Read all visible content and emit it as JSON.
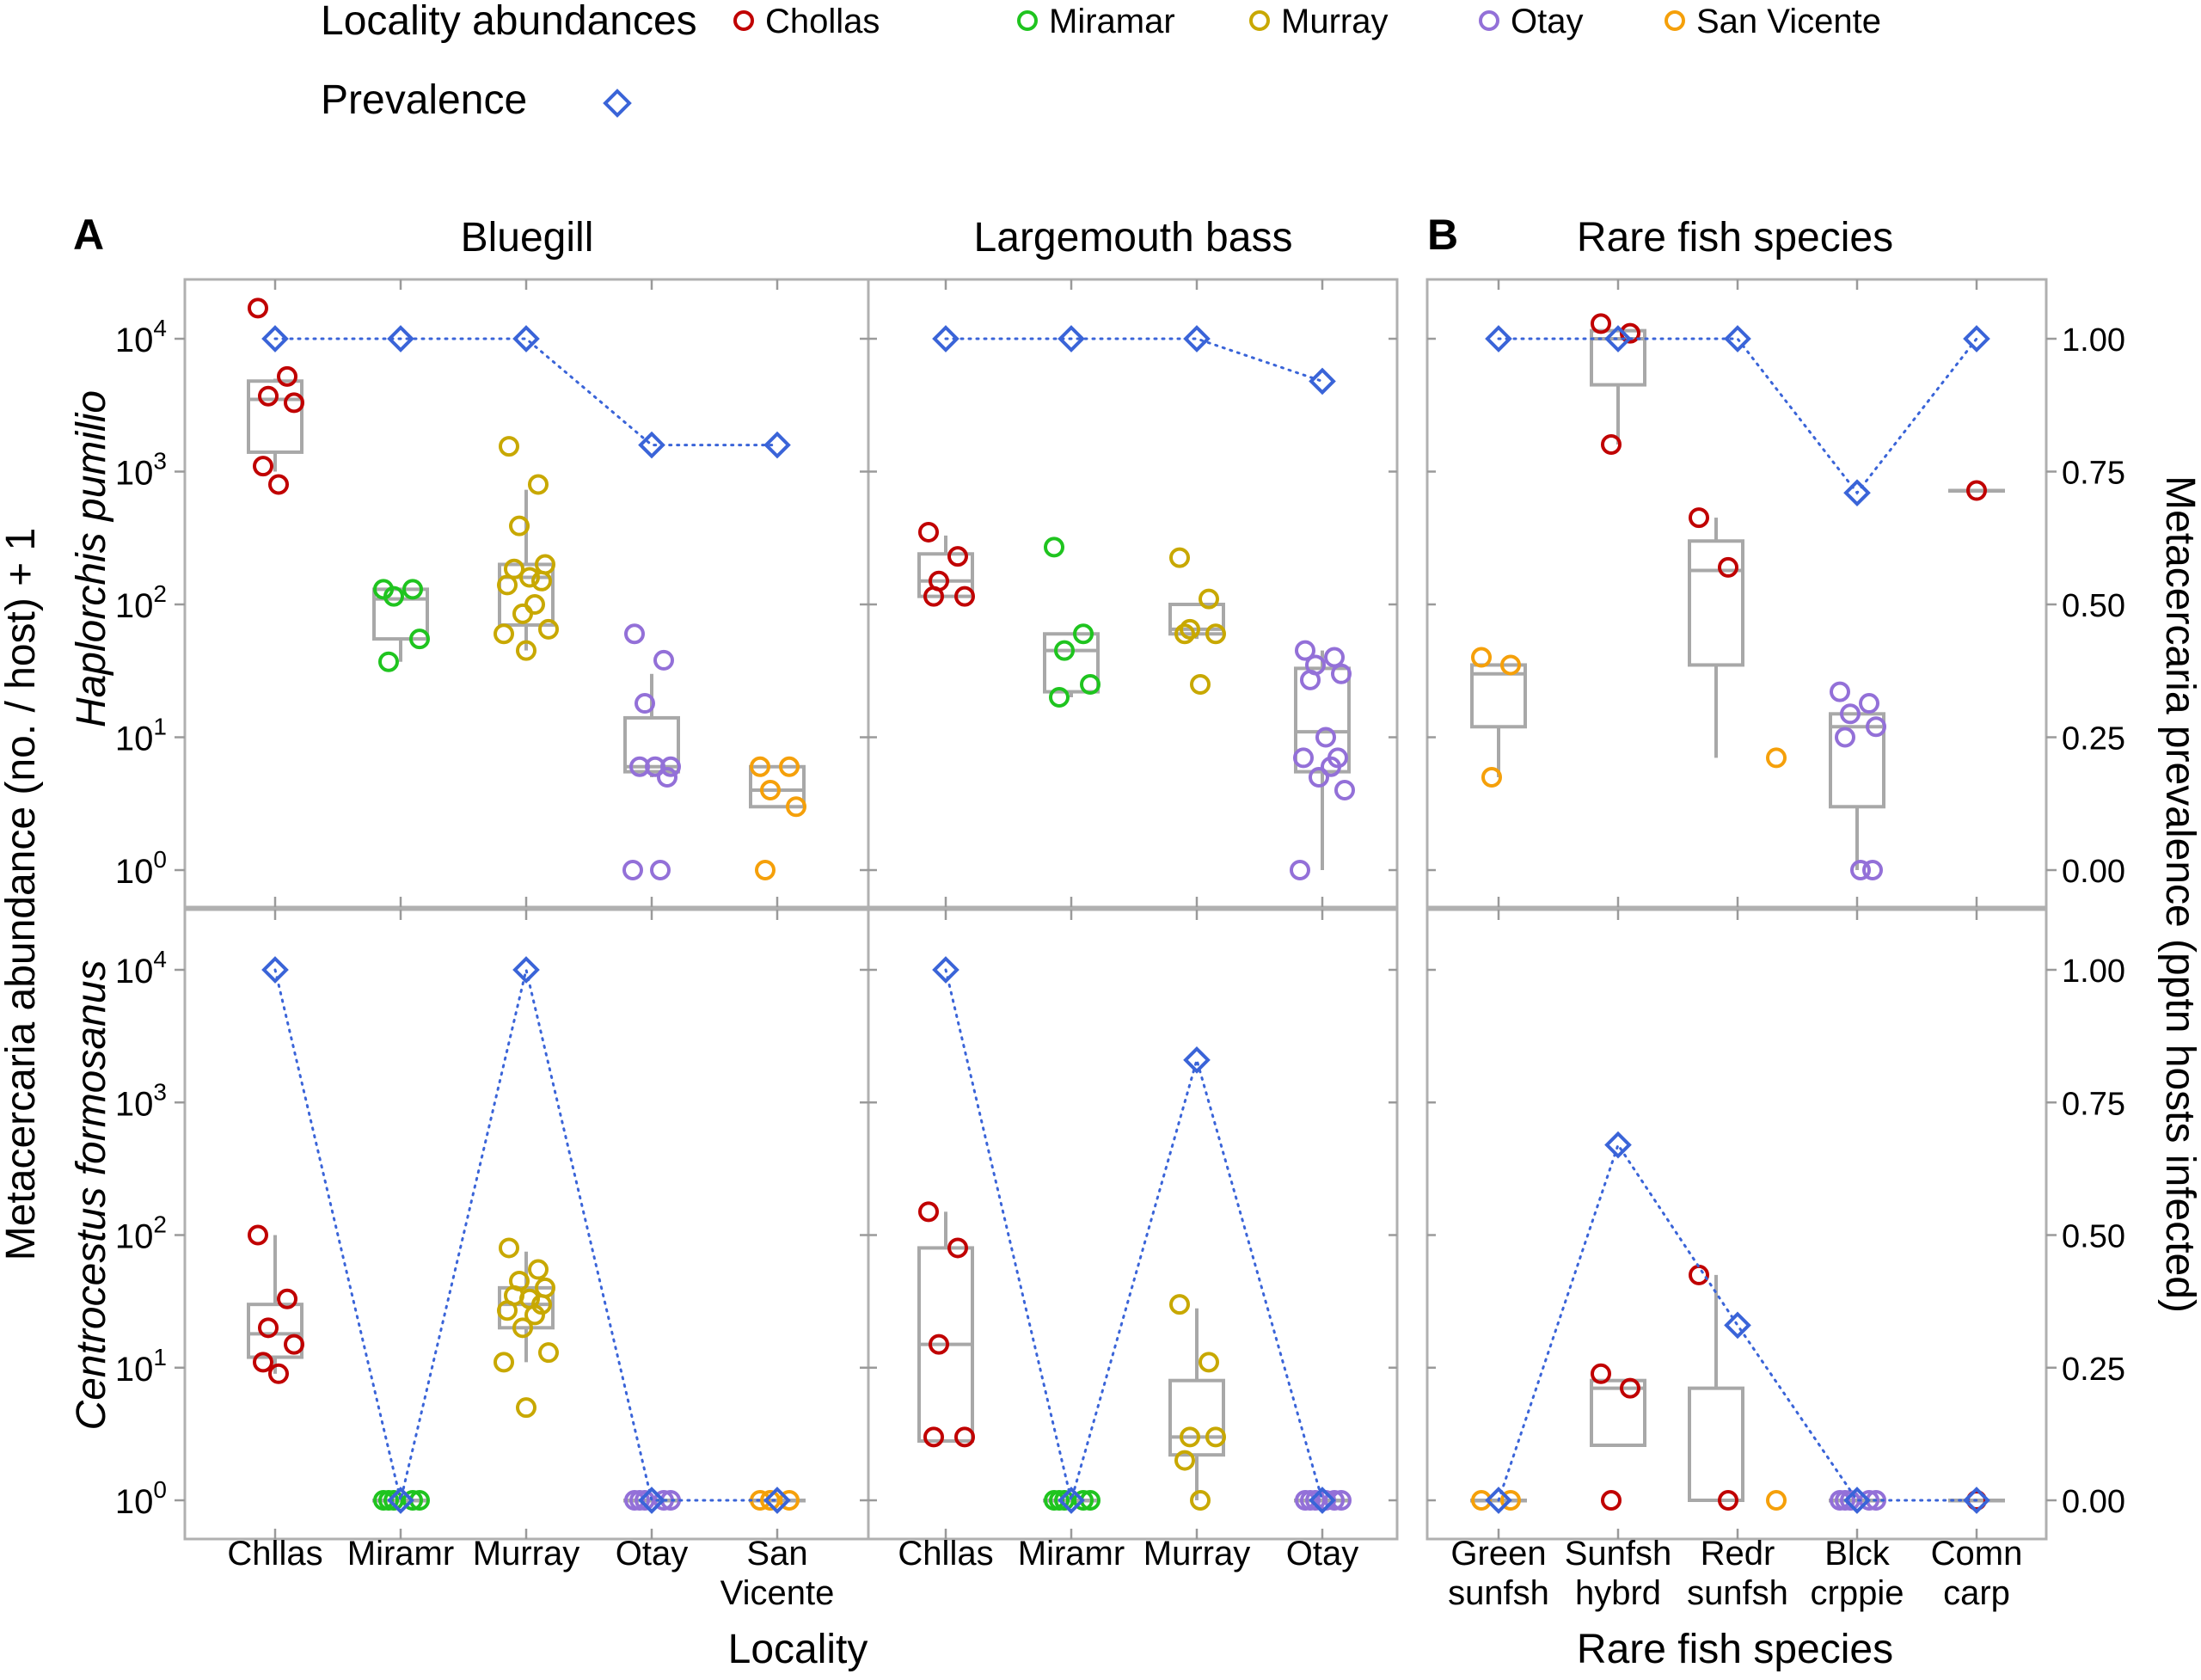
{
  "figure": {
    "panel_letters": [
      "A",
      "B"
    ],
    "y_axis_left_label": "Metacercaria abundance (no. / host) + 1",
    "y_axis_right_label": "Metacercaria prevalence (pptn hosts infected)",
    "x_axis_label_A": "Locality",
    "x_axis_label_B": "Rare fish species"
  },
  "legend": {
    "abundance_title": "Locality abundances",
    "prevalence_title": "Prevalence",
    "localities": [
      {
        "name": "Chollas",
        "color": "#c00000"
      },
      {
        "name": "Miramar",
        "color": "#1fc41f"
      },
      {
        "name": "Murray",
        "color": "#c8a800"
      },
      {
        "name": "Otay",
        "color": "#9370d8"
      },
      {
        "name": "San Vicente",
        "color": "#f5a00a"
      }
    ],
    "prevalence_color": "#3a64d8",
    "prevalence_marker": "open-diamond-icon"
  },
  "chart_data": {
    "type": "scatter",
    "y_left_scale": "log10",
    "y_left_ticks": [
      "10^0",
      "10^1",
      "10^2",
      "10^3",
      "10^4"
    ],
    "y_right_ticks": [
      "0.00",
      "0.25",
      "0.50",
      "0.75",
      "1.00"
    ],
    "ylim_left": [
      1,
      10000
    ],
    "ylim_right": [
      0,
      1
    ],
    "column_titles": [
      "Bluegill",
      "Largemouth bass",
      "Rare fish species"
    ],
    "row_labels": [
      "Haplorchis pumilio",
      "Centrocestus formosanus"
    ],
    "columns": [
      {
        "title": "Bluegill",
        "categories": [
          [
            "Chllas"
          ],
          [
            "Miramr"
          ],
          [
            "Murray"
          ],
          [
            "Otay"
          ],
          [
            "San",
            "Vicente"
          ]
        ]
      },
      {
        "title": "Largemouth bass",
        "categories": [
          [
            "Chllas"
          ],
          [
            "Miramr"
          ],
          [
            "Murray"
          ],
          [
            "Otay"
          ]
        ]
      },
      {
        "title": "Rare fish species",
        "categories": [
          [
            "Green",
            "sunfsh"
          ],
          [
            "Sunfsh",
            "hybrd"
          ],
          [
            "Redr",
            "sunfsh"
          ],
          [
            "Blck",
            "crppie"
          ],
          [
            "Comn",
            "carp"
          ]
        ]
      }
    ],
    "panels": [
      {
        "row": 0,
        "col": 0,
        "groups": [
          {
            "color": "Chollas",
            "points": [
              17000,
              5200,
              3700,
              3300,
              1100,
              800
            ],
            "box": [
              1400,
              3500,
              4800,
              1000,
              5000
            ]
          },
          {
            "color": "Miramar",
            "points": [
              130,
              130,
              115,
              55,
              37
            ],
            "box": [
              55,
              110,
              130,
              37,
              130
            ]
          },
          {
            "color": "Murray",
            "points": [
              1550,
              800,
              390,
              200,
              185,
              160,
              150,
              140,
              100,
              85,
              65,
              60,
              45
            ],
            "box": [
              70,
              160,
              200,
              45,
              730
            ]
          },
          {
            "color": "Otay",
            "points": [
              60,
              38,
              18,
              6,
              6,
              6,
              5,
              1,
              1
            ],
            "box": [
              5.5,
              6,
              14,
              5,
              30
            ]
          },
          {
            "color": "San Vicente",
            "points": [
              6,
              6,
              4,
              3,
              1
            ],
            "box": [
              3,
              4,
              6,
              3,
              6
            ]
          }
        ],
        "prevalence": [
          1.0,
          1.0,
          1.0,
          0.8,
          0.8
        ]
      },
      {
        "row": 0,
        "col": 1,
        "groups": [
          {
            "color": "Chollas",
            "points": [
              350,
              230,
              150,
              115,
              115
            ],
            "box": [
              115,
              150,
              240,
              115,
              330
            ]
          },
          {
            "color": "Miramar",
            "points": [
              270,
              60,
              45,
              25,
              20
            ],
            "box": [
              22,
              45,
              60,
              20,
              60
            ]
          },
          {
            "color": "Murray",
            "points": [
              225,
              110,
              65,
              60,
              60,
              25
            ],
            "box": [
              60,
              65,
              100,
              55,
              100
            ]
          },
          {
            "color": "Otay",
            "points": [
              45,
              40,
              35,
              30,
              27,
              10,
              7,
              7,
              6,
              5,
              4,
              1
            ],
            "box": [
              5.5,
              11,
              33,
              1,
              45
            ]
          }
        ],
        "prevalence": [
          1.0,
          1.0,
          1.0,
          0.92
        ]
      },
      {
        "row": 0,
        "col": 2,
        "groups": [
          {
            "color": "San Vicente",
            "points": [
              40,
              35,
              5
            ],
            "box": [
              12,
              30,
              35,
              5,
              35
            ]
          },
          {
            "color": "Chollas",
            "points": [
              13000,
              11000,
              1600
            ],
            "box": [
              4500,
              10000,
              11500,
              1600,
              11500
            ]
          },
          {
            "color": "Chollas",
            "points": [
              450,
              190
            ],
            "box": [
              35,
              180,
              300,
              7,
              450
            ]
          },
          {
            "color": "San Vicente",
            "points": [
              7
            ],
            "box": null
          },
          {
            "color": "Otay",
            "points": [
              22,
              18,
              15,
              12,
              10,
              1,
              1
            ],
            "box": [
              3,
              12,
              15,
              1,
              15
            ]
          },
          {
            "color": "Chollas",
            "points": [
              720
            ],
            "box": [
              720,
              720,
              720,
              720,
              720
            ]
          }
        ],
        "prevalence": [
          1.0,
          1.0,
          1.0,
          0.71,
          1.0
        ]
      },
      {
        "row": 1,
        "col": 0,
        "groups": [
          {
            "color": "Chollas",
            "points": [
              100,
              33,
              20,
              15,
              11,
              9
            ],
            "box": [
              12,
              18,
              30,
              9,
              100
            ]
          },
          {
            "color": "Miramar",
            "points": [
              1,
              1,
              1,
              1,
              1
            ],
            "box": [
              1,
              1,
              1,
              1,
              1
            ]
          },
          {
            "color": "Murray",
            "points": [
              80,
              55,
              45,
              40,
              35,
              33,
              30,
              27,
              25,
              20,
              13,
              11,
              5
            ],
            "box": [
              20,
              30,
              40,
              11,
              75
            ]
          },
          {
            "color": "Otay",
            "points": [
              1,
              1,
              1,
              1,
              1
            ],
            "box": [
              1,
              1,
              1,
              1,
              1
            ]
          },
          {
            "color": "San Vicente",
            "points": [
              1,
              1,
              1
            ],
            "box": [
              1,
              1,
              1,
              1,
              1
            ]
          }
        ],
        "prevalence": [
          1.0,
          0.0,
          1.0,
          0.0,
          0.0
        ]
      },
      {
        "row": 1,
        "col": 1,
        "groups": [
          {
            "color": "Chollas",
            "points": [
              150,
              80,
              15,
              3,
              3
            ],
            "box": [
              2.8,
              15,
              80,
              2.8,
              150
            ]
          },
          {
            "color": "Miramar",
            "points": [
              1,
              1,
              1,
              1,
              1
            ],
            "box": [
              1,
              1,
              1,
              1,
              1
            ]
          },
          {
            "color": "Murray",
            "points": [
              30,
              11,
              3,
              3,
              2,
              1
            ],
            "box": [
              2.2,
              3,
              8,
              1,
              28
            ]
          },
          {
            "color": "Otay",
            "points": [
              1,
              1,
              1,
              1,
              1,
              1
            ],
            "box": [
              1,
              1,
              1,
              1,
              1
            ]
          }
        ],
        "prevalence": [
          1.0,
          0.0,
          0.83,
          0.0
        ]
      },
      {
        "row": 1,
        "col": 2,
        "groups": [
          {
            "color": "San Vicente",
            "points": [
              1,
              1
            ],
            "box": [
              1,
              1,
              1,
              1,
              1
            ]
          },
          {
            "color": "Chollas",
            "points": [
              9,
              7,
              1
            ],
            "box": [
              2.6,
              7,
              8,
              2.6,
              8
            ]
          },
          {
            "color": "Chollas",
            "points": [
              50,
              1
            ],
            "box": [
              1,
              1,
              7,
              1,
              50
            ]
          },
          {
            "color": "San Vicente",
            "points": [
              1
            ],
            "box": null
          },
          {
            "color": "Otay",
            "points": [
              1,
              1,
              1,
              1,
              1
            ],
            "box": [
              1,
              1,
              1,
              1,
              1
            ]
          },
          {
            "color": "Chollas",
            "points": [
              1
            ],
            "box": [
              1,
              1,
              1,
              1,
              1
            ]
          }
        ],
        "prevalence": [
          0.0,
          0.67,
          0.33,
          0.0,
          0.0
        ]
      }
    ]
  }
}
